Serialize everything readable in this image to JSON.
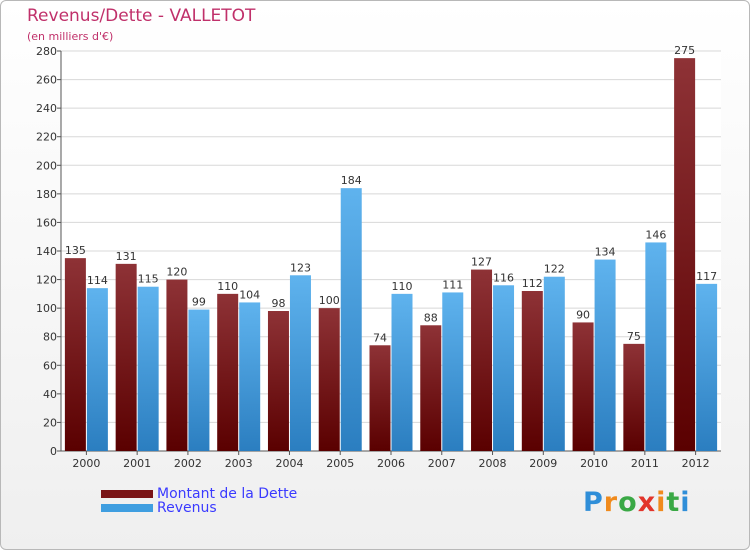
{
  "chart_data": {
    "type": "bar",
    "title": "Revenus/Dette - VALLETOT",
    "subtitle": "(en milliers d'€)",
    "categories": [
      "2000",
      "2001",
      "2002",
      "2003",
      "2004",
      "2005",
      "2006",
      "2007",
      "2008",
      "2009",
      "2010",
      "2011",
      "2012"
    ],
    "series": [
      {
        "name": "Montant de la Dette",
        "color": "#7a1416",
        "values": [
          135,
          131,
          120,
          110,
          98,
          100,
          74,
          88,
          127,
          112,
          90,
          75,
          275
        ]
      },
      {
        "name": "Revenus",
        "color": "#3f9ee0",
        "values": [
          114,
          115,
          99,
          104,
          123,
          184,
          110,
          111,
          116,
          122,
          134,
          146,
          117
        ]
      }
    ],
    "ylim": [
      0,
      280
    ],
    "yticks": [
      0,
      20,
      40,
      60,
      80,
      100,
      120,
      140,
      160,
      180,
      200,
      220,
      240,
      260,
      280
    ],
    "grid": true,
    "legend": "bottom-left"
  },
  "logo": {
    "text": "Proxiti",
    "letter_colors": [
      "#2f8ed8",
      "#f08a1c",
      "#3aa845",
      "#e2342a",
      "#f08a1c",
      "#3aa845",
      "#2f8ed8"
    ]
  }
}
